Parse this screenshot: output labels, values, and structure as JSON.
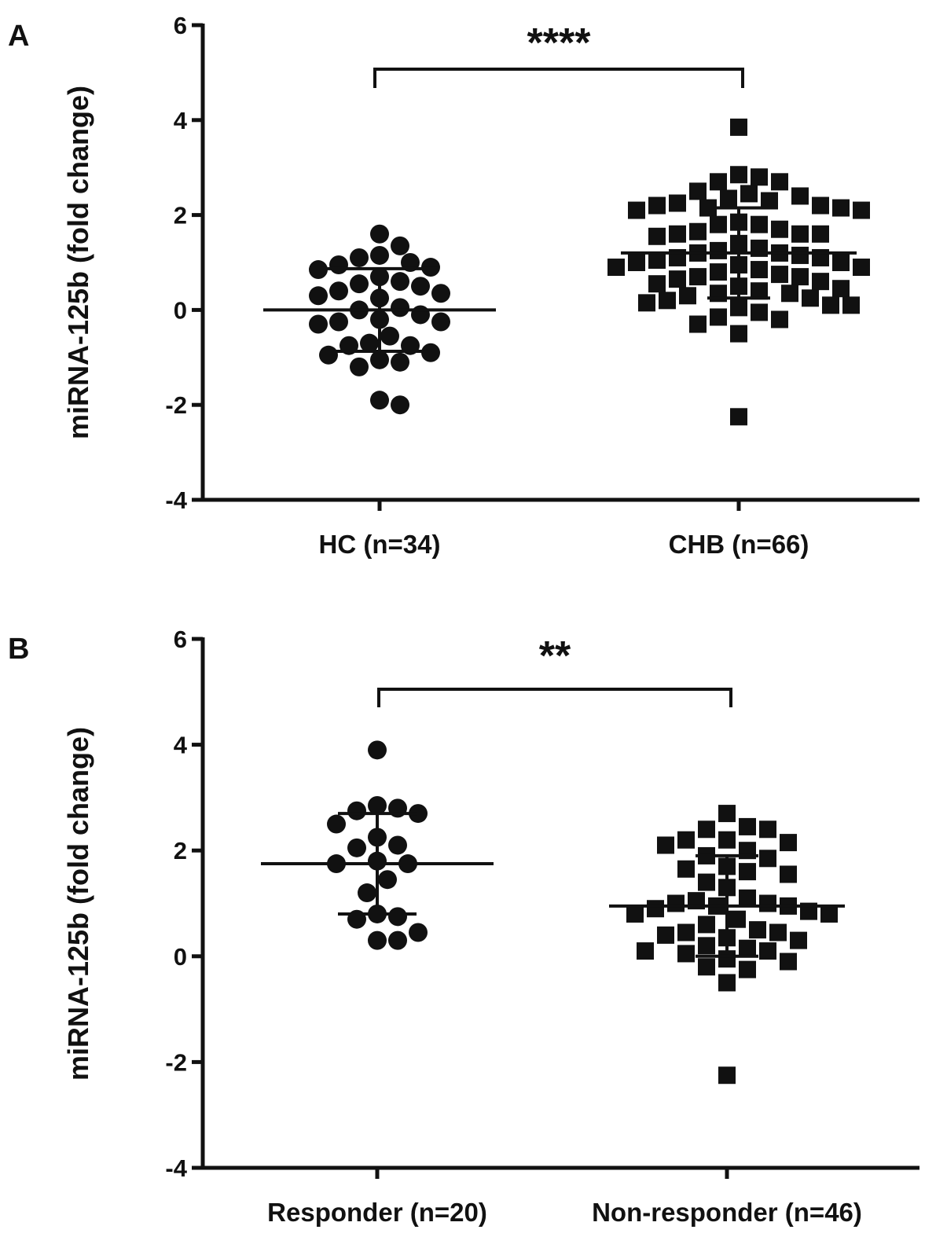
{
  "chart_data": [
    {
      "type": "scatter",
      "panel_label": "A",
      "ylabel": "miRNA-125b (fold change)",
      "ylim": [
        -4,
        6
      ],
      "yticks": [
        "-4",
        "-2",
        "0",
        "2",
        "4",
        "6"
      ],
      "grid": false,
      "significance": "****",
      "groups": [
        {
          "name": "HC (n=34)",
          "marker": "circle",
          "mean": 0.0,
          "sd": 0.87,
          "values": [
            1.6,
            1.35,
            1.15,
            1.1,
            1.0,
            0.95,
            0.9,
            0.85,
            0.7,
            0.6,
            0.55,
            0.5,
            0.4,
            0.35,
            0.3,
            0.25,
            0.05,
            0.0,
            -0.1,
            -0.2,
            -0.25,
            -0.25,
            -0.3,
            -0.55,
            -0.7,
            -0.75,
            -0.75,
            -0.9,
            -0.95,
            -1.05,
            -1.1,
            -1.2,
            -1.9,
            -2.0
          ]
        },
        {
          "name": "CHB (n=66)",
          "marker": "square",
          "mean": 1.2,
          "sd": 0.95,
          "values": [
            3.85,
            2.85,
            2.8,
            2.7,
            2.7,
            2.5,
            2.45,
            2.4,
            2.35,
            2.3,
            2.25,
            2.2,
            2.2,
            2.15,
            2.15,
            2.1,
            2.1,
            1.85,
            1.8,
            1.8,
            1.7,
            1.65,
            1.6,
            1.6,
            1.6,
            1.55,
            1.4,
            1.3,
            1.25,
            1.2,
            1.2,
            1.15,
            1.1,
            1.1,
            1.05,
            1.0,
            1.0,
            0.95,
            0.9,
            0.9,
            0.85,
            0.8,
            0.75,
            0.7,
            0.7,
            0.65,
            0.6,
            0.55,
            0.5,
            0.45,
            0.4,
            0.35,
            0.35,
            0.3,
            0.25,
            0.2,
            0.15,
            0.1,
            0.1,
            0.05,
            -0.05,
            -0.15,
            -0.2,
            -0.3,
            -0.5,
            -2.25
          ]
        }
      ]
    },
    {
      "type": "scatter",
      "panel_label": "B",
      "ylabel": "miRNA-125b (fold change)",
      "ylim": [
        -4,
        6
      ],
      "yticks": [
        "-4",
        "-2",
        "0",
        "2",
        "4",
        "6"
      ],
      "grid": false,
      "significance": "**",
      "groups": [
        {
          "name": "Responder (n=20)",
          "marker": "circle",
          "mean": 1.75,
          "sd": 0.95,
          "values": [
            3.9,
            2.85,
            2.8,
            2.75,
            2.7,
            2.5,
            2.25,
            2.1,
            2.05,
            1.8,
            1.75,
            1.75,
            1.45,
            1.2,
            0.8,
            0.75,
            0.7,
            0.45,
            0.3,
            0.3
          ]
        },
        {
          "name": "Non-responder (n=46)",
          "marker": "square",
          "mean": 0.95,
          "sd": 0.95,
          "values": [
            2.7,
            2.45,
            2.4,
            2.4,
            2.2,
            2.2,
            2.15,
            2.1,
            2.0,
            1.9,
            1.85,
            1.7,
            1.65,
            1.6,
            1.55,
            1.4,
            1.3,
            1.1,
            1.05,
            1.0,
            1.0,
            0.95,
            0.95,
            0.9,
            0.85,
            0.8,
            0.8,
            0.7,
            0.6,
            0.5,
            0.45,
            0.45,
            0.4,
            0.35,
            0.3,
            0.2,
            0.15,
            0.1,
            0.1,
            0.05,
            -0.05,
            -0.1,
            -0.2,
            -0.25,
            -0.5,
            -2.25
          ]
        }
      ]
    }
  ]
}
